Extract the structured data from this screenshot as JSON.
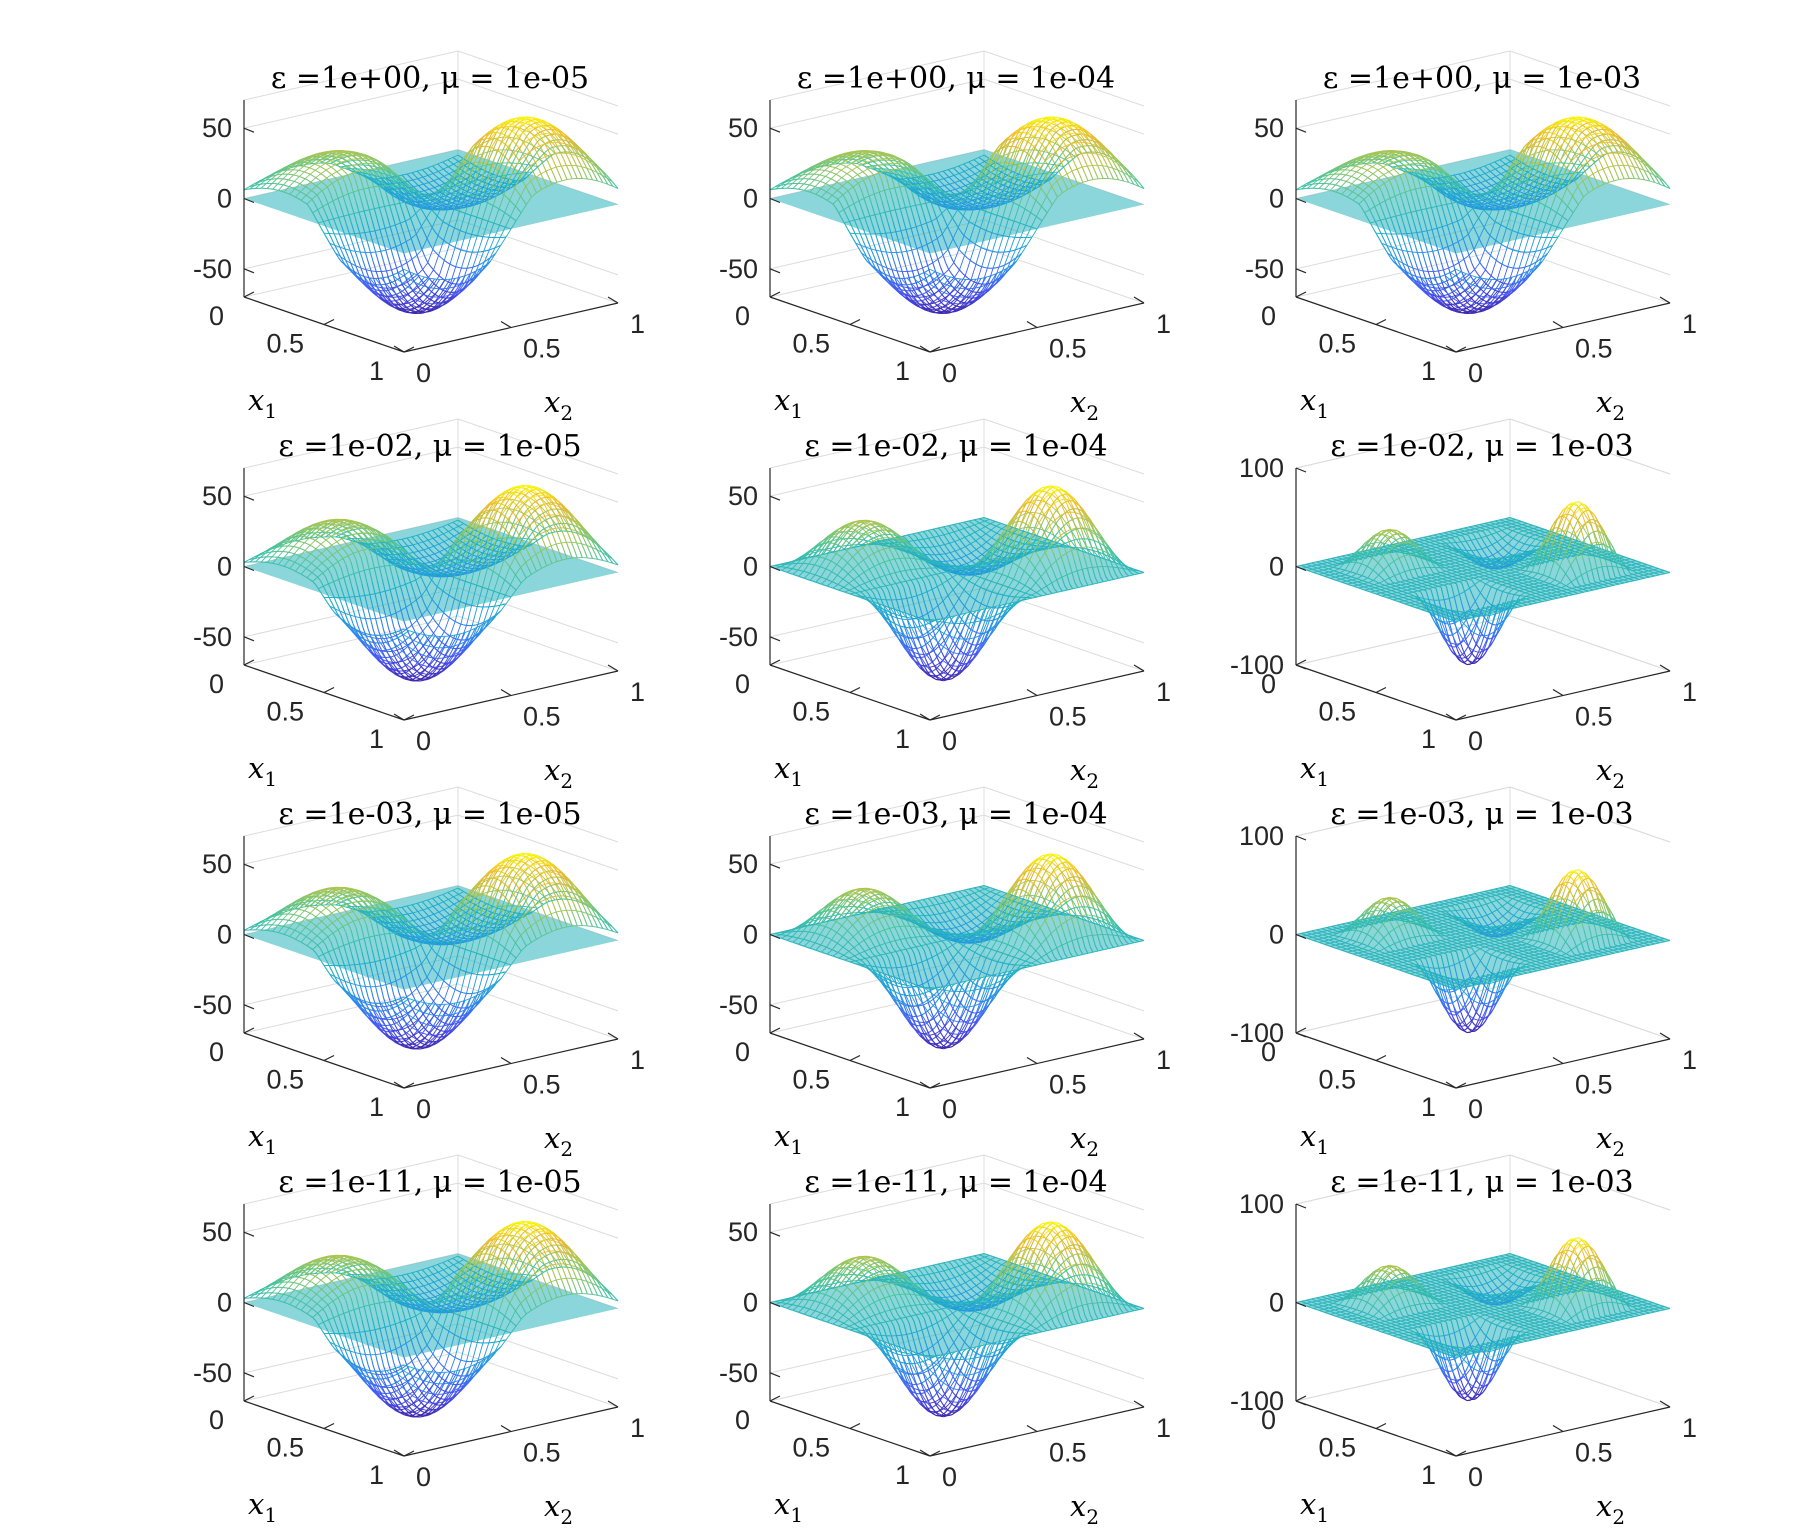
{
  "chart_data": [
    {
      "type": "surface3d",
      "title": "ε =1e+00, μ = 1e-05",
      "epsilon": "1e+00",
      "mu": "1e-05",
      "xlabel": "x1",
      "ylabel": "x2",
      "xlim": [
        0,
        1
      ],
      "ylim": [
        0,
        1
      ],
      "zlim": [
        -70,
        70
      ],
      "xticks": [
        "0",
        "0.5",
        "1"
      ],
      "yticks": [
        "0",
        "0.5",
        "1"
      ],
      "zticks": [
        "-50",
        "0",
        "50"
      ],
      "peak": 60,
      "trough": -60,
      "hump_width": 0.35
    },
    {
      "type": "surface3d",
      "title": "ε =1e+00, μ = 1e-04",
      "epsilon": "1e+00",
      "mu": "1e-04",
      "xlabel": "x1",
      "ylabel": "x2",
      "xlim": [
        0,
        1
      ],
      "ylim": [
        0,
        1
      ],
      "zlim": [
        -70,
        70
      ],
      "xticks": [
        "0",
        "0.5",
        "1"
      ],
      "yticks": [
        "0",
        "0.5",
        "1"
      ],
      "zticks": [
        "-50",
        "0",
        "50"
      ],
      "peak": 60,
      "trough": -60,
      "hump_width": 0.35
    },
    {
      "type": "surface3d",
      "title": "ε =1e+00, μ = 1e-03",
      "epsilon": "1e+00",
      "mu": "1e-03",
      "xlabel": "x1",
      "ylabel": "x2",
      "xlim": [
        0,
        1
      ],
      "ylim": [
        0,
        1
      ],
      "zlim": [
        -70,
        70
      ],
      "xticks": [
        "0",
        "0.5",
        "1"
      ],
      "yticks": [
        "0",
        "0.5",
        "1"
      ],
      "zticks": [
        "-50",
        "0",
        "50"
      ],
      "peak": 60,
      "trough": -60,
      "hump_width": 0.35
    },
    {
      "type": "surface3d",
      "title": "ε =1e-02, μ = 1e-05",
      "epsilon": "1e-02",
      "mu": "1e-05",
      "xlabel": "x1",
      "ylabel": "x2",
      "xlim": [
        0,
        1
      ],
      "ylim": [
        0,
        1
      ],
      "zlim": [
        -70,
        70
      ],
      "xticks": [
        "0",
        "0.5",
        "1"
      ],
      "yticks": [
        "0",
        "0.5",
        "1"
      ],
      "zticks": [
        "-50",
        "0",
        "50"
      ],
      "peak": 60,
      "trough": -60,
      "hump_width": 0.31
    },
    {
      "type": "surface3d",
      "title": "ε =1e-02, μ = 1e-04",
      "epsilon": "1e-02",
      "mu": "1e-04",
      "xlabel": "x1",
      "ylabel": "x2",
      "xlim": [
        0,
        1
      ],
      "ylim": [
        0,
        1
      ],
      "zlim": [
        -70,
        70
      ],
      "xticks": [
        "0",
        "0.5",
        "1"
      ],
      "yticks": [
        "0",
        "0.5",
        "1"
      ],
      "zticks": [
        "-50",
        "0",
        "50"
      ],
      "peak": 60,
      "trough": -60,
      "hump_width": 0.24
    },
    {
      "type": "surface3d",
      "title": "ε =1e-02, μ = 1e-03",
      "epsilon": "1e-02",
      "mu": "1e-03",
      "xlabel": "x1",
      "ylabel": "x2",
      "xlim": [
        0,
        1
      ],
      "ylim": [
        0,
        1
      ],
      "zlim": [
        -100,
        100
      ],
      "xticks": [
        "0",
        "0.5",
        "1"
      ],
      "yticks": [
        "0",
        "0.5",
        "1"
      ],
      "zticks": [
        "-100",
        "0",
        "100"
      ],
      "peak": 70,
      "trough": -70,
      "hump_width": 0.16
    },
    {
      "type": "surface3d",
      "title": "ε =1e-03, μ = 1e-05",
      "epsilon": "1e-03",
      "mu": "1e-05",
      "xlabel": "x1",
      "ylabel": "x2",
      "xlim": [
        0,
        1
      ],
      "ylim": [
        0,
        1
      ],
      "zlim": [
        -70,
        70
      ],
      "xticks": [
        "0",
        "0.5",
        "1"
      ],
      "yticks": [
        "0",
        "0.5",
        "1"
      ],
      "zticks": [
        "-50",
        "0",
        "50"
      ],
      "peak": 60,
      "trough": -60,
      "hump_width": 0.31
    },
    {
      "type": "surface3d",
      "title": "ε =1e-03, μ = 1e-04",
      "epsilon": "1e-03",
      "mu": "1e-04",
      "xlabel": "x1",
      "ylabel": "x2",
      "xlim": [
        0,
        1
      ],
      "ylim": [
        0,
        1
      ],
      "zlim": [
        -70,
        70
      ],
      "xticks": [
        "0",
        "0.5",
        "1"
      ],
      "yticks": [
        "0",
        "0.5",
        "1"
      ],
      "zticks": [
        "-50",
        "0",
        "50"
      ],
      "peak": 60,
      "trough": -60,
      "hump_width": 0.24
    },
    {
      "type": "surface3d",
      "title": "ε =1e-03, μ = 1e-03",
      "epsilon": "1e-03",
      "mu": "1e-03",
      "xlabel": "x1",
      "ylabel": "x2",
      "xlim": [
        0,
        1
      ],
      "ylim": [
        0,
        1
      ],
      "zlim": [
        -100,
        100
      ],
      "xticks": [
        "0",
        "0.5",
        "1"
      ],
      "yticks": [
        "0",
        "0.5",
        "1"
      ],
      "zticks": [
        "-100",
        "0",
        "100"
      ],
      "peak": 70,
      "trough": -70,
      "hump_width": 0.16
    },
    {
      "type": "surface3d",
      "title": "ε =1e-11, μ = 1e-05",
      "epsilon": "1e-11",
      "mu": "1e-05",
      "xlabel": "x1",
      "ylabel": "x2",
      "xlim": [
        0,
        1
      ],
      "ylim": [
        0,
        1
      ],
      "zlim": [
        -70,
        70
      ],
      "xticks": [
        "0",
        "0.5",
        "1"
      ],
      "yticks": [
        "0",
        "0.5",
        "1"
      ],
      "zticks": [
        "-50",
        "0",
        "50"
      ],
      "peak": 60,
      "trough": -60,
      "hump_width": 0.31
    },
    {
      "type": "surface3d",
      "title": "ε =1e-11, μ = 1e-04",
      "epsilon": "1e-11",
      "mu": "1e-04",
      "xlabel": "x1",
      "ylabel": "x2",
      "xlim": [
        0,
        1
      ],
      "ylim": [
        0,
        1
      ],
      "zlim": [
        -70,
        70
      ],
      "xticks": [
        "0",
        "0.5",
        "1"
      ],
      "yticks": [
        "0",
        "0.5",
        "1"
      ],
      "zticks": [
        "-50",
        "0",
        "50"
      ],
      "peak": 60,
      "trough": -60,
      "hump_width": 0.24
    },
    {
      "type": "surface3d",
      "title": "ε =1e-11, μ = 1e-03",
      "epsilon": "1e-11",
      "mu": "1e-03",
      "xlabel": "x1",
      "ylabel": "x2",
      "xlim": [
        0,
        1
      ],
      "ylim": [
        0,
        1
      ],
      "zlim": [
        -100,
        100
      ],
      "xticks": [
        "0",
        "0.5",
        "1"
      ],
      "yticks": [
        "0",
        "0.5",
        "1"
      ],
      "zticks": [
        "-100",
        "0",
        "100"
      ],
      "peak": 70,
      "trough": -70,
      "hump_width": 0.16
    }
  ],
  "colors": {
    "colormap": "parula",
    "low": "#3e26a8",
    "mid": "#2ab0c8",
    "high": "#f9fb0e",
    "axis": "#262626",
    "grid": "#dcdcdc"
  }
}
